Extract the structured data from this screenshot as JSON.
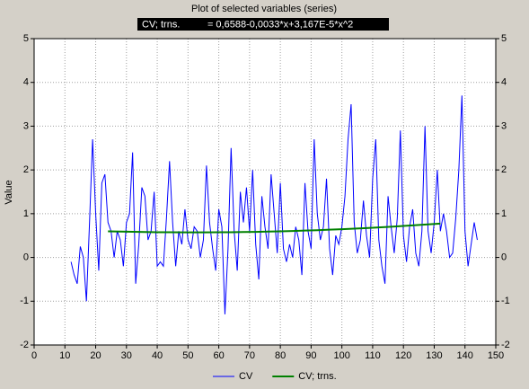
{
  "chart_data": {
    "type": "line",
    "title": "Plot of selected variables (series)",
    "subtitle": "CV; trns.          = 0,6588-0,0033*x+3,167E-5*x^2",
    "y_label": "Value",
    "xlim": [
      0,
      150
    ],
    "xticks": [
      0,
      10,
      20,
      30,
      40,
      50,
      60,
      70,
      80,
      90,
      100,
      110,
      120,
      130,
      140,
      150
    ],
    "ylim": [
      -2,
      5
    ],
    "yticks": [
      -2,
      -1,
      0,
      1,
      2,
      3,
      4,
      5
    ],
    "grid": true,
    "legend": "bottom",
    "series": [
      {
        "name": "CV",
        "color": "#0000ff",
        "x": [
          12,
          13,
          14,
          15,
          16,
          17,
          18,
          19,
          20,
          21,
          22,
          23,
          24,
          25,
          26,
          27,
          28,
          29,
          30,
          31,
          32,
          33,
          34,
          35,
          36,
          37,
          38,
          39,
          40,
          41,
          42,
          43,
          44,
          45,
          46,
          47,
          48,
          49,
          50,
          51,
          52,
          53,
          54,
          55,
          56,
          57,
          58,
          59,
          60,
          61,
          62,
          63,
          64,
          65,
          66,
          67,
          68,
          69,
          70,
          71,
          72,
          73,
          74,
          75,
          76,
          77,
          78,
          79,
          80,
          81,
          82,
          83,
          84,
          85,
          86,
          87,
          88,
          89,
          90,
          91,
          92,
          93,
          94,
          95,
          96,
          97,
          98,
          99,
          100,
          101,
          102,
          103,
          104,
          105,
          106,
          107,
          108,
          109,
          110,
          111,
          112,
          113,
          114,
          115,
          116,
          117,
          118,
          119,
          120,
          121,
          122,
          123,
          124,
          125,
          126,
          127,
          128,
          129,
          130,
          131,
          132,
          133,
          134,
          135,
          136,
          137,
          138,
          139,
          140,
          141,
          142,
          143,
          144
        ],
        "values": [
          -0.1,
          -0.4,
          -0.6,
          0.25,
          0.0,
          -1.0,
          0.8,
          2.7,
          1.0,
          -0.3,
          1.7,
          1.9,
          0.8,
          0.6,
          0.0,
          0.6,
          0.4,
          -0.2,
          0.8,
          1.0,
          2.4,
          -0.6,
          0.3,
          1.6,
          1.4,
          0.4,
          0.6,
          1.5,
          -0.2,
          -0.1,
          -0.2,
          0.9,
          2.2,
          0.8,
          -0.2,
          0.6,
          0.3,
          1.1,
          0.4,
          0.2,
          0.7,
          0.6,
          0.0,
          0.4,
          2.1,
          0.8,
          0.2,
          -0.3,
          1.1,
          0.7,
          -1.3,
          0.2,
          2.5,
          0.6,
          -0.3,
          1.5,
          0.8,
          1.6,
          0.6,
          2.0,
          0.3,
          -0.5,
          1.4,
          0.7,
          0.2,
          1.9,
          1.0,
          0.1,
          1.7,
          0.2,
          -0.1,
          0.3,
          0.0,
          0.7,
          0.4,
          -0.4,
          1.7,
          0.6,
          0.2,
          2.7,
          1.0,
          0.4,
          0.7,
          1.8,
          0.2,
          -0.4,
          0.5,
          0.3,
          0.7,
          1.4,
          2.7,
          3.5,
          0.8,
          0.1,
          0.4,
          1.3,
          0.5,
          0.0,
          1.8,
          2.7,
          0.4,
          -0.2,
          -0.6,
          1.4,
          0.7,
          0.1,
          0.9,
          2.9,
          0.5,
          -0.1,
          0.7,
          1.1,
          0.1,
          -0.2,
          0.6,
          3.0,
          0.6,
          0.1,
          0.8,
          2.0,
          0.6,
          1.0,
          0.6,
          0.0,
          0.1,
          0.9,
          2.0,
          3.7,
          0.6,
          -0.2,
          0.3,
          0.8,
          0.4
        ]
      },
      {
        "name": "CV; trns.",
        "color": "#008000",
        "x": [
          24,
          28,
          32,
          36,
          40,
          44,
          48,
          52,
          56,
          60,
          64,
          68,
          72,
          76,
          80,
          84,
          88,
          92,
          96,
          100,
          104,
          108,
          112,
          116,
          120,
          124,
          128,
          132
        ],
        "values": [
          0.598,
          0.591,
          0.586,
          0.581,
          0.577,
          0.575,
          0.573,
          0.573,
          0.573,
          0.575,
          0.577,
          0.581,
          0.585,
          0.591,
          0.597,
          0.605,
          0.614,
          0.623,
          0.634,
          0.645,
          0.658,
          0.672,
          0.686,
          0.702,
          0.719,
          0.737,
          0.755,
          0.775
        ]
      }
    ]
  }
}
